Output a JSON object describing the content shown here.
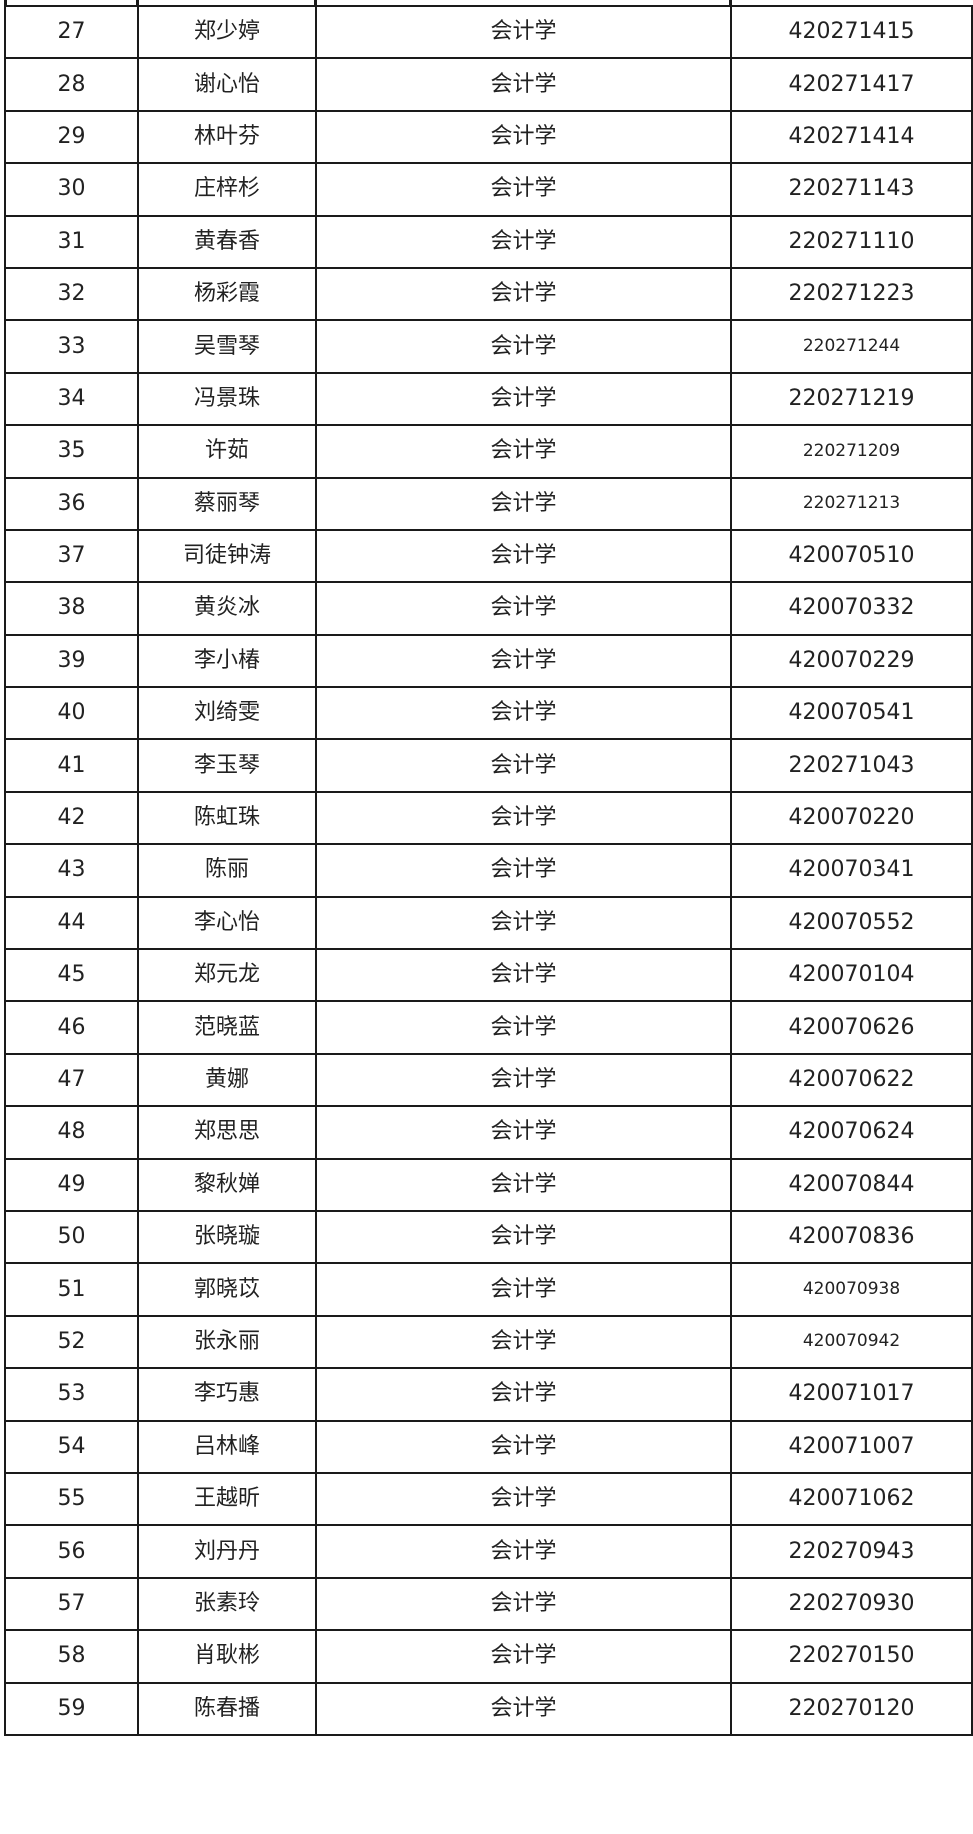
{
  "table": {
    "rows": [
      {
        "no": "27",
        "name": "郑少婷",
        "major": "会计学",
        "id": "420271415"
      },
      {
        "no": "28",
        "name": "谢心怡",
        "major": "会计学",
        "id": "420271417"
      },
      {
        "no": "29",
        "name": "林叶芬",
        "major": "会计学",
        "id": "420271414"
      },
      {
        "no": "30",
        "name": "庄梓杉",
        "major": "会计学",
        "id": "220271143"
      },
      {
        "no": "31",
        "name": "黄春香",
        "major": "会计学",
        "id": "220271110"
      },
      {
        "no": "32",
        "name": "杨彩霞",
        "major": "会计学",
        "id": "220271223"
      },
      {
        "no": "33",
        "name": "吴雪琴",
        "major": "会计学",
        "id": "220271244",
        "small": true
      },
      {
        "no": "34",
        "name": "冯景珠",
        "major": "会计学",
        "id": "220271219"
      },
      {
        "no": "35",
        "name": "许茹",
        "major": "会计学",
        "id": "220271209",
        "small": true
      },
      {
        "no": "36",
        "name": "蔡丽琴",
        "major": "会计学",
        "id": "220271213",
        "small": true
      },
      {
        "no": "37",
        "name": "司徒钟涛",
        "major": "会计学",
        "id": "420070510"
      },
      {
        "no": "38",
        "name": "黄炎冰",
        "major": "会计学",
        "id": "420070332"
      },
      {
        "no": "39",
        "name": "李小椿",
        "major": "会计学",
        "id": "420070229"
      },
      {
        "no": "40",
        "name": "刘绮雯",
        "major": "会计学",
        "id": "420070541"
      },
      {
        "no": "41",
        "name": "李玉琴",
        "major": "会计学",
        "id": "220271043"
      },
      {
        "no": "42",
        "name": "陈虹珠",
        "major": "会计学",
        "id": "420070220"
      },
      {
        "no": "43",
        "name": "陈丽",
        "major": "会计学",
        "id": "420070341"
      },
      {
        "no": "44",
        "name": "李心怡",
        "major": "会计学",
        "id": "420070552"
      },
      {
        "no": "45",
        "name": "郑元龙",
        "major": "会计学",
        "id": "420070104"
      },
      {
        "no": "46",
        "name": "范晓蓝",
        "major": "会计学",
        "id": "420070626"
      },
      {
        "no": "47",
        "name": "黄娜",
        "major": "会计学",
        "id": "420070622"
      },
      {
        "no": "48",
        "name": "郑思思",
        "major": "会计学",
        "id": "420070624"
      },
      {
        "no": "49",
        "name": "黎秋婵",
        "major": "会计学",
        "id": "420070844"
      },
      {
        "no": "50",
        "name": "张晓璇",
        "major": "会计学",
        "id": "420070836"
      },
      {
        "no": "51",
        "name": "郭晓苡",
        "major": "会计学",
        "id": "420070938",
        "small": true
      },
      {
        "no": "52",
        "name": "张永丽",
        "major": "会计学",
        "id": "420070942",
        "small": true
      },
      {
        "no": "53",
        "name": "李巧惠",
        "major": "会计学",
        "id": "420071017"
      },
      {
        "no": "54",
        "name": "吕林峰",
        "major": "会计学",
        "id": "420071007"
      },
      {
        "no": "55",
        "name": "王越昕",
        "major": "会计学",
        "id": "420071062"
      },
      {
        "no": "56",
        "name": "刘丹丹",
        "major": "会计学",
        "id": "220270943"
      },
      {
        "no": "57",
        "name": "张素玲",
        "major": "会计学",
        "id": "220270930"
      },
      {
        "no": "58",
        "name": "肖耿彬",
        "major": "会计学",
        "id": "220270150"
      },
      {
        "no": "59",
        "name": "陈春播",
        "major": "会计学",
        "id": "220270120"
      }
    ]
  }
}
